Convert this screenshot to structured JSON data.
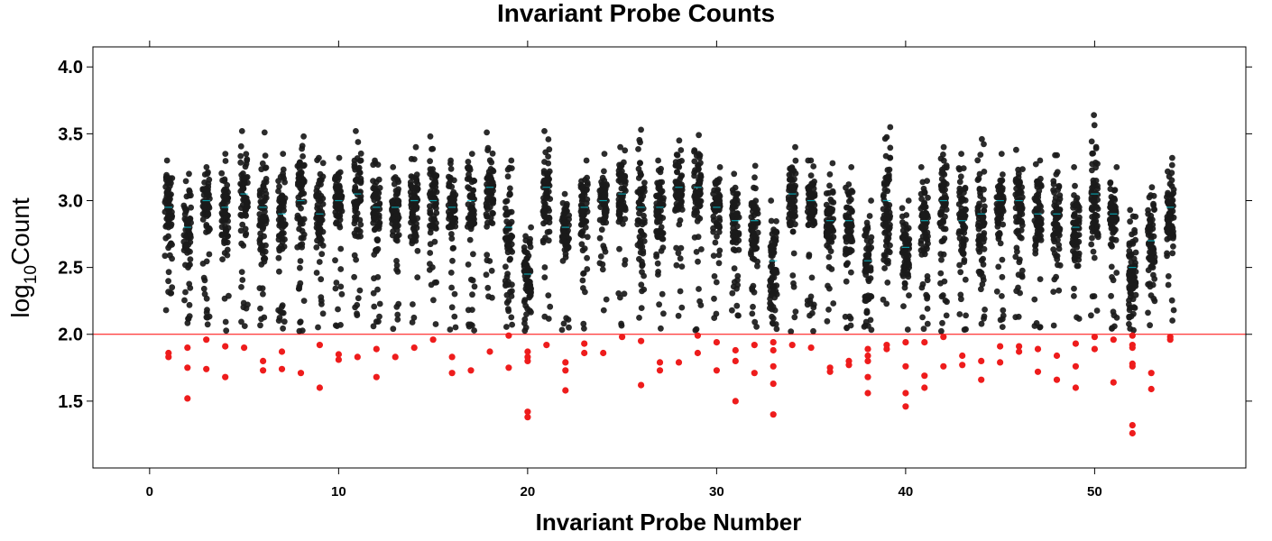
{
  "chart_data": {
    "type": "scatter",
    "title": "Invariant Probe Counts",
    "xlabel": "Invariant Probe Number",
    "ylabel_main": "log",
    "ylabel_sub": "10",
    "ylabel_rest": "Count",
    "xlim": [
      -3,
      58
    ],
    "ylim": [
      1.0,
      4.15
    ],
    "xticks": [
      0,
      10,
      20,
      30,
      40,
      50
    ],
    "yticks": [
      1.5,
      2.0,
      2.5,
      3.0,
      3.5,
      4.0
    ],
    "ytick_labels": [
      "1.5",
      "2.0",
      "2.5",
      "3.0",
      "3.5",
      "4.0"
    ],
    "threshold": 2.0,
    "threshold_color": "#ff0000",
    "point_color": "#1a1a1a",
    "below_threshold_color": "#ee1c1c",
    "median_color": "#00d0e0",
    "probes": [
      1,
      2,
      3,
      4,
      5,
      6,
      7,
      8,
      9,
      10,
      11,
      12,
      13,
      14,
      15,
      16,
      17,
      18,
      19,
      20,
      21,
      22,
      23,
      24,
      25,
      26,
      27,
      28,
      29,
      30,
      31,
      32,
      33,
      34,
      35,
      36,
      37,
      38,
      39,
      40,
      41,
      42,
      43,
      44,
      45,
      46,
      47,
      48,
      49,
      50,
      51,
      52,
      53,
      54
    ],
    "center": [
      2.95,
      2.8,
      3.0,
      2.95,
      3.05,
      2.95,
      2.9,
      3.0,
      2.9,
      3.0,
      3.05,
      2.95,
      2.95,
      3.0,
      3.0,
      2.95,
      3.0,
      3.1,
      2.8,
      2.45,
      3.1,
      2.8,
      2.95,
      3.0,
      3.05,
      2.95,
      2.95,
      3.1,
      3.1,
      2.95,
      2.85,
      2.85,
      2.55,
      3.05,
      3.0,
      2.85,
      2.85,
      2.55,
      3.0,
      2.65,
      2.85,
      3.0,
      2.85,
      2.9,
      3.0,
      3.0,
      2.9,
      2.9,
      2.8,
      3.05,
      2.9,
      2.5,
      2.7,
      2.95
    ],
    "max": [
      3.3,
      3.2,
      3.25,
      3.35,
      3.52,
      3.51,
      3.35,
      3.48,
      3.32,
      3.32,
      3.52,
      3.3,
      3.25,
      3.4,
      3.48,
      3.3,
      3.35,
      3.51,
      3.3,
      2.8,
      3.52,
      3.05,
      3.3,
      3.35,
      3.4,
      3.53,
      3.3,
      3.45,
      3.49,
      3.25,
      3.2,
      3.26,
      3.0,
      3.4,
      3.3,
      3.28,
      3.25,
      3.0,
      3.55,
      3.0,
      3.25,
      3.4,
      3.35,
      3.46,
      3.35,
      3.38,
      3.3,
      3.34,
      3.25,
      3.64,
      3.25,
      2.93,
      3.1,
      3.32
    ],
    "low_points": [
      [
        1,
        1.86
      ],
      [
        1,
        1.83
      ],
      [
        2,
        1.9
      ],
      [
        2,
        1.75
      ],
      [
        2,
        1.52
      ],
      [
        3,
        1.96
      ],
      [
        3,
        1.74
      ],
      [
        4,
        1.91
      ],
      [
        4,
        1.68
      ],
      [
        5,
        1.9
      ],
      [
        6,
        1.8
      ],
      [
        6,
        1.73
      ],
      [
        7,
        1.87
      ],
      [
        7,
        1.74
      ],
      [
        8,
        1.71
      ],
      [
        9,
        1.92
      ],
      [
        9,
        1.6
      ],
      [
        10,
        1.85
      ],
      [
        10,
        1.81
      ],
      [
        11,
        1.83
      ],
      [
        12,
        1.89
      ],
      [
        12,
        1.68
      ],
      [
        13,
        1.83
      ],
      [
        14,
        1.9
      ],
      [
        15,
        1.96
      ],
      [
        16,
        1.83
      ],
      [
        16,
        1.71
      ],
      [
        17,
        1.73
      ],
      [
        18,
        1.87
      ],
      [
        19,
        1.75
      ],
      [
        19,
        1.99
      ],
      [
        20,
        1.87
      ],
      [
        20,
        1.8
      ],
      [
        20,
        1.83
      ],
      [
        20,
        1.42
      ],
      [
        20,
        1.38
      ],
      [
        21,
        1.92
      ],
      [
        22,
        1.79
      ],
      [
        22,
        1.73
      ],
      [
        22,
        1.58
      ],
      [
        23,
        1.93
      ],
      [
        23,
        1.86
      ],
      [
        24,
        1.86
      ],
      [
        25,
        1.98
      ],
      [
        26,
        1.95
      ],
      [
        26,
        1.62
      ],
      [
        27,
        1.79
      ],
      [
        27,
        1.73
      ],
      [
        28,
        1.79
      ],
      [
        29,
        1.99
      ],
      [
        29,
        1.86
      ],
      [
        30,
        1.94
      ],
      [
        30,
        1.73
      ],
      [
        31,
        1.88
      ],
      [
        31,
        1.8
      ],
      [
        31,
        1.5
      ],
      [
        32,
        1.92
      ],
      [
        32,
        1.71
      ],
      [
        33,
        1.94
      ],
      [
        33,
        1.88
      ],
      [
        33,
        1.76
      ],
      [
        33,
        1.63
      ],
      [
        33,
        1.4
      ],
      [
        34,
        1.92
      ],
      [
        35,
        1.9
      ],
      [
        36,
        1.75
      ],
      [
        36,
        1.72
      ],
      [
        37,
        1.8
      ],
      [
        37,
        1.77
      ],
      [
        38,
        1.89
      ],
      [
        38,
        1.84
      ],
      [
        38,
        1.8
      ],
      [
        38,
        1.68
      ],
      [
        38,
        1.56
      ],
      [
        39,
        1.92
      ],
      [
        39,
        1.89
      ],
      [
        40,
        1.94
      ],
      [
        40,
        1.76
      ],
      [
        40,
        1.56
      ],
      [
        40,
        1.46
      ],
      [
        41,
        1.94
      ],
      [
        41,
        1.69
      ],
      [
        41,
        1.6
      ],
      [
        42,
        1.98
      ],
      [
        42,
        1.76
      ],
      [
        43,
        1.84
      ],
      [
        43,
        1.77
      ],
      [
        44,
        1.8
      ],
      [
        44,
        1.66
      ],
      [
        45,
        1.91
      ],
      [
        45,
        1.79
      ],
      [
        46,
        1.91
      ],
      [
        46,
        1.87
      ],
      [
        47,
        1.89
      ],
      [
        47,
        1.72
      ],
      [
        48,
        1.84
      ],
      [
        48,
        1.66
      ],
      [
        49,
        1.93
      ],
      [
        49,
        1.76
      ],
      [
        49,
        1.6
      ],
      [
        50,
        1.98
      ],
      [
        50,
        1.89
      ],
      [
        51,
        1.96
      ],
      [
        51,
        1.64
      ],
      [
        52,
        1.99
      ],
      [
        52,
        1.92
      ],
      [
        52,
        1.9
      ],
      [
        52,
        1.78
      ],
      [
        52,
        1.76
      ],
      [
        52,
        1.32
      ],
      [
        52,
        1.26
      ],
      [
        53,
        1.71
      ],
      [
        53,
        1.59
      ],
      [
        54,
        1.98
      ],
      [
        54,
        1.96
      ]
    ]
  }
}
